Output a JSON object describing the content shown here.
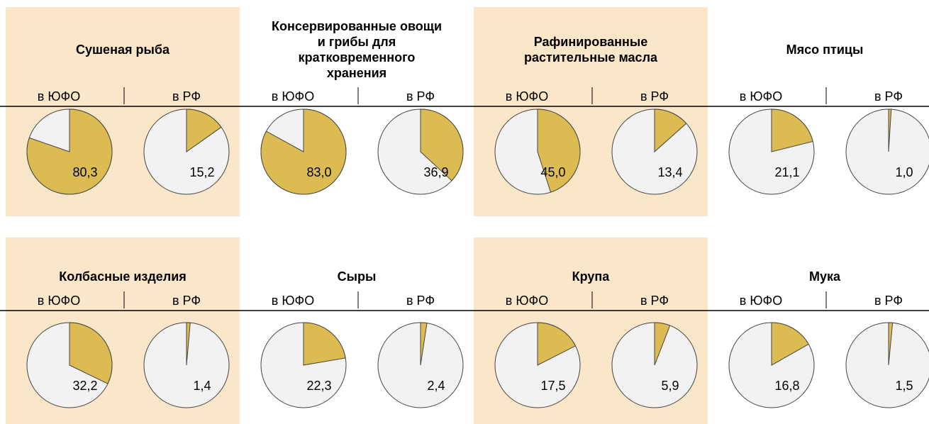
{
  "chart_data": {
    "type": "pie",
    "slice_color": "#dcbc52",
    "rest_color": "#f2f2f2",
    "groups": [
      {
        "title": "Сушеная рыба",
        "background": "#fae6c8",
        "categories": [
          "в ЮФО",
          "в РФ"
        ],
        "values": [
          80.3,
          15.2
        ],
        "value_labels": [
          "80,3",
          "15,2"
        ]
      },
      {
        "title": "Консервированные овощи и грибы для кратковременного хранения",
        "categories": [
          "в ЮФО",
          "в РФ"
        ],
        "values": [
          83.0,
          36.9
        ],
        "value_labels": [
          "83,0",
          "36,9"
        ]
      },
      {
        "title": "Рафинированные растительные масла",
        "background": "#fae6c8",
        "categories": [
          "в ЮФО",
          "в РФ"
        ],
        "values": [
          45.0,
          13.4
        ],
        "value_labels": [
          "45,0",
          "13,4"
        ]
      },
      {
        "title": "Мясо птицы",
        "categories": [
          "в ЮФО",
          "в РФ"
        ],
        "values": [
          21.1,
          1.0
        ],
        "value_labels": [
          "21,1",
          "1,0"
        ]
      },
      {
        "title": "Колбасные изделия",
        "background": "#fae6c8",
        "categories": [
          "в ЮФО",
          "в РФ"
        ],
        "values": [
          32.2,
          1.4
        ],
        "value_labels": [
          "32,2",
          "1,4"
        ]
      },
      {
        "title": "Сыры",
        "categories": [
          "в ЮФО",
          "в РФ"
        ],
        "values": [
          22.3,
          2.4
        ],
        "value_labels": [
          "22,3",
          "2,4"
        ]
      },
      {
        "title": "Крупа",
        "background": "#fae6c8",
        "categories": [
          "в ЮФО",
          "в РФ"
        ],
        "values": [
          17.5,
          5.9
        ],
        "value_labels": [
          "17,5",
          "5,9"
        ]
      },
      {
        "title": "Мука",
        "categories": [
          "в ЮФО",
          "в РФ"
        ],
        "values": [
          16.8,
          1.5
        ],
        "value_labels": [
          "16,8",
          "1,5"
        ]
      }
    ]
  }
}
